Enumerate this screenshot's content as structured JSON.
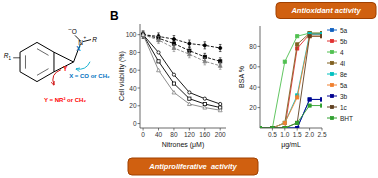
{
  "chart_data": [
    {
      "type": "line",
      "xlabel": "Nitrones (μM)",
      "ylabel": "Cell viability (%)",
      "x": [
        0,
        40,
        80,
        120,
        160,
        200
      ],
      "xlim": [
        -8,
        215
      ],
      "ylim": [
        -5,
        112
      ],
      "xticks": [
        0,
        40,
        80,
        120,
        160,
        200
      ],
      "yticks": [
        0,
        20,
        40,
        60,
        80,
        100
      ],
      "grid": false,
      "series": [
        {
          "color": "black",
          "line_style": "dashed",
          "marker": "circle",
          "values": [
            100,
            98,
            95,
            90,
            88,
            85
          ],
          "errors": [
            4,
            4,
            4,
            4,
            4,
            4
          ]
        },
        {
          "color": "black",
          "line_style": "dashed",
          "marker": "square",
          "values": [
            100,
            96,
            90,
            82,
            75,
            70
          ],
          "errors": [
            4,
            4,
            4,
            4,
            4,
            4
          ]
        },
        {
          "color": "gray",
          "line_style": "dashed",
          "marker": "triangle",
          "values": [
            100,
            94,
            85,
            78,
            70,
            65
          ],
          "errors": [
            4,
            4,
            4,
            4,
            4,
            4
          ]
        },
        {
          "color": "black",
          "line_style": "solid",
          "marker": "open-circle",
          "values": [
            100,
            80,
            55,
            35,
            28,
            22
          ]
        },
        {
          "color": "black",
          "line_style": "solid",
          "marker": "open-square",
          "values": [
            100,
            70,
            45,
            28,
            22,
            18
          ]
        },
        {
          "color": "gray",
          "line_style": "solid",
          "marker": "open-triangle",
          "values": [
            100,
            60,
            35,
            22,
            18,
            15
          ]
        }
      ],
      "annotations": [
        {
          "text": "X = CO or CH₂",
          "color": "#0070c0"
        },
        {
          "text": "Y = NR² or CH₂",
          "color": "#ff0000"
        },
        {
          "text": "X",
          "color": "#0070c0"
        },
        {
          "text": "Y",
          "color": "#ff0000"
        },
        {
          "text": "N"
        },
        {
          "text": "+"
        },
        {
          "text": "O"
        },
        {
          "text": "−"
        },
        {
          "text": "R"
        },
        {
          "text": "R"
        },
        {
          "text": "1"
        },
        {
          "text": "B"
        },
        {
          "text": "Antiproliferative  activity",
          "color": "#d06010"
        }
      ]
    },
    {
      "type": "line",
      "xlabel": "μg/mL",
      "ylabel": "BSA %",
      "x": [
        0,
        0.5,
        1.0,
        1.5,
        2.0,
        2.5
      ],
      "xlim": [
        0,
        2.5
      ],
      "ylim": [
        0,
        100
      ],
      "xticks": [
        0.5,
        {
          "value": 1.0,
          "label": "1.0"
        },
        1.5,
        {
          "value": 2.0,
          "label": "2.0"
        },
        2.5
      ],
      "yticks": [
        20,
        40,
        60,
        80
      ],
      "grid": false,
      "legend": "right",
      "series": [
        {
          "name": "5a",
          "color": "#1060c0",
          "marker": "square",
          "values": [
            0,
            0,
            0,
            0,
            28,
            28
          ]
        },
        {
          "name": "5b",
          "color": "#e03030",
          "marker": "square",
          "values": [
            0,
            0,
            0,
            78,
            92,
            92
          ]
        },
        {
          "name": "4",
          "color": "#50c050",
          "marker": "square",
          "values": [
            0,
            0,
            65,
            90,
            93,
            93
          ]
        },
        {
          "name": "4l",
          "color": "#806020",
          "marker": "square",
          "values": [
            0,
            0,
            5,
            82,
            93,
            93
          ]
        },
        {
          "name": "8e",
          "color": "#00c0c0",
          "marker": "square",
          "values": [
            0,
            0,
            5,
            32,
            92,
            92
          ]
        },
        {
          "name": "5a",
          "color": "#f08030",
          "marker": "square",
          "values": [
            0,
            0,
            5,
            30,
            90,
            90
          ]
        },
        {
          "name": "3b",
          "color": "#000090",
          "marker": "square",
          "values": [
            0,
            0,
            0,
            0,
            28,
            28
          ]
        },
        {
          "name": "1c",
          "color": "#604020",
          "marker": "square",
          "values": [
            0,
            0,
            0,
            5,
            90,
            90
          ]
        },
        {
          "name": "BHT",
          "color": "#30a030",
          "marker": "square",
          "values": [
            0,
            0,
            0,
            5,
            22,
            22
          ]
        }
      ],
      "annotations": [
        {
          "text": "Antioxidant activity",
          "color": "#d06010"
        }
      ]
    }
  ]
}
